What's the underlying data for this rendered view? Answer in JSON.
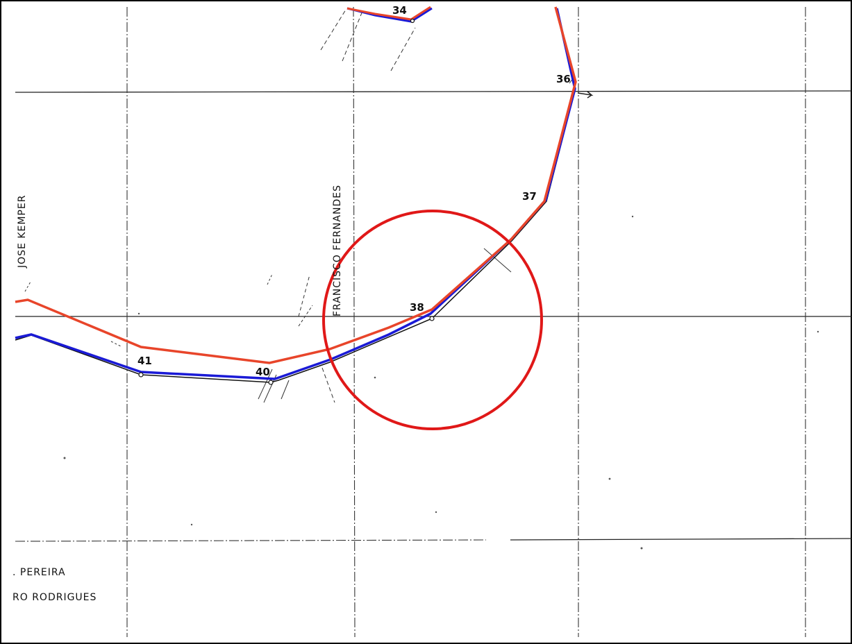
{
  "map": {
    "point_labels": {
      "p34": "34",
      "p36": "36",
      "p37": "37",
      "p38": "38",
      "p40": "40",
      "p41": "41"
    },
    "owner_labels": {
      "jose_kemper": "JOSE KEMPER",
      "francisco_fernandes": "FRANCISCO FERNANDES",
      "pereira": ". PEREIRA",
      "rodrigues": "RO RODRIGUES"
    },
    "colors": {
      "red_line": "#e8452a",
      "blue_line": "#1a1ad6",
      "black_line": "#111111",
      "highlight_circle": "#e01818",
      "frame": "#000000",
      "background": "#ffffff"
    }
  }
}
